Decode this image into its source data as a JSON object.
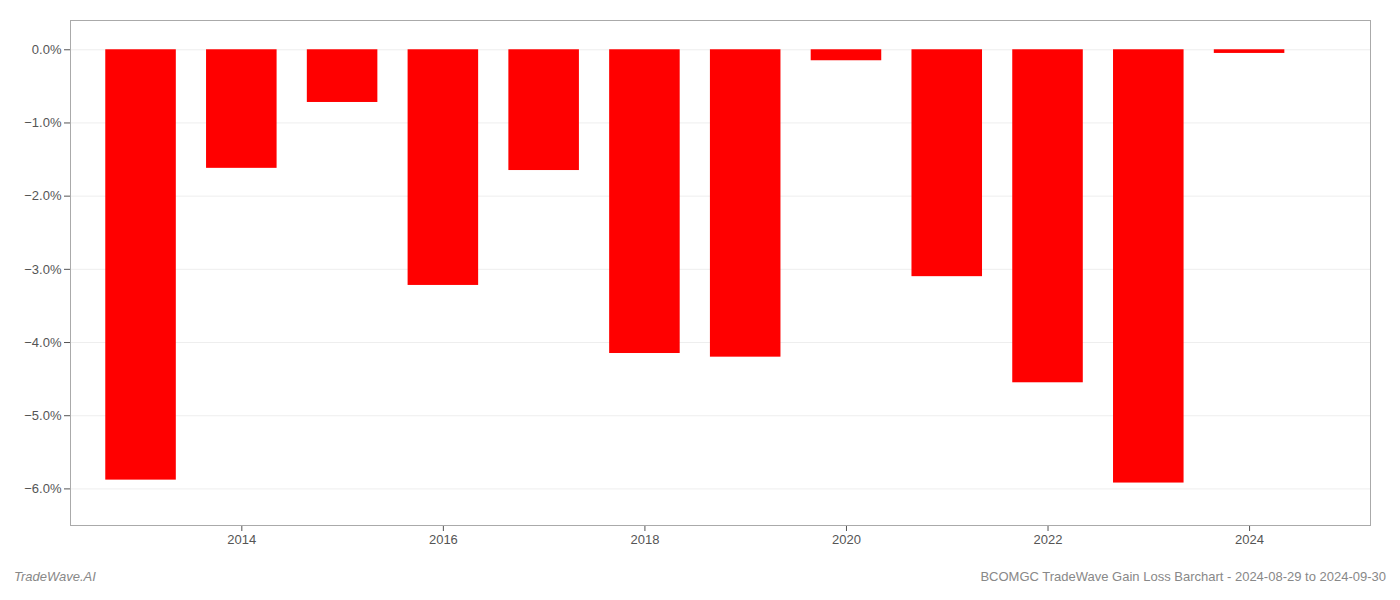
{
  "chart_data": {
    "type": "bar",
    "x": [
      2013,
      2014,
      2015,
      2016,
      2017,
      2018,
      2019,
      2020,
      2021,
      2022,
      2023,
      2024
    ],
    "values": [
      -5.88,
      -1.62,
      -0.72,
      -3.22,
      -1.65,
      -4.15,
      -4.2,
      -0.15,
      -3.1,
      -4.55,
      -5.92,
      -0.05
    ],
    "color": "#ff0000",
    "xlim": [
      2012.3,
      2025.2
    ],
    "xticks": [
      2014,
      2016,
      2018,
      2020,
      2022,
      2024
    ],
    "ylim": [
      -6.5,
      0.4
    ],
    "yticks": [
      {
        "value": 0.0,
        "label": "0.0%"
      },
      {
        "value": -1.0,
        "label": "−1.0%"
      },
      {
        "value": -2.0,
        "label": "−2.0%"
      },
      {
        "value": -3.0,
        "label": "−3.0%"
      },
      {
        "value": -4.0,
        "label": "−4.0%"
      },
      {
        "value": -5.0,
        "label": "−5.0%"
      },
      {
        "value": -6.0,
        "label": "−6.0%"
      }
    ],
    "grid": true,
    "annotations": [
      "TradeWave.AI",
      "BCOMGC TradeWave Gain Loss Barchart - 2024-08-29 to 2024-09-30"
    ]
  }
}
